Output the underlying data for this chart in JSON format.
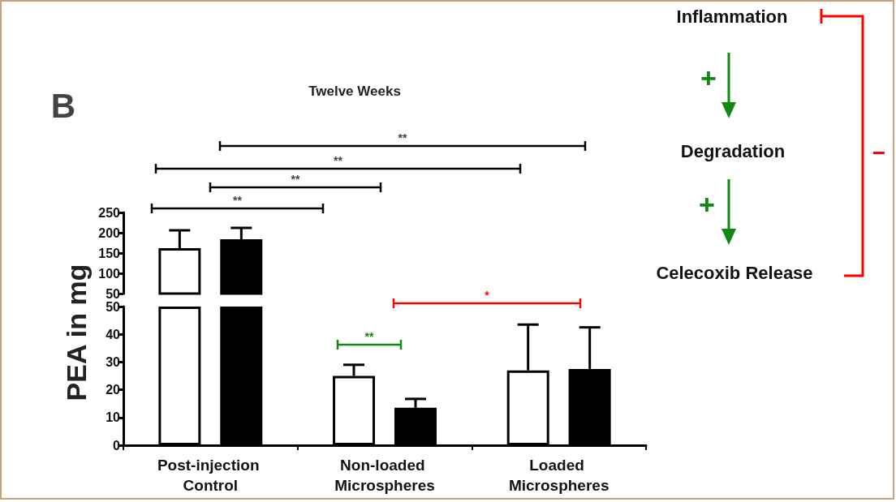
{
  "chart_data": [
    {
      "type": "bar",
      "title": "Twelve Weeks",
      "subtitle": "B",
      "ylabel": "PEA in mg",
      "categories": [
        "Post-injection Control",
        "Non-loaded Microspheres",
        "Loaded Microspheres"
      ],
      "series": [
        {
          "color": "#ffffff",
          "values": [
            162,
            null,
            null
          ],
          "errors": [
            [
              162,
              206
            ],
            null,
            null
          ]
        },
        {
          "color": "#000000",
          "values": [
            184,
            null,
            null
          ],
          "errors": [
            [
              184,
              212
            ],
            null,
            null
          ]
        }
      ],
      "ylim": [
        50,
        250
      ],
      "yticks": [
        50,
        100,
        150,
        200,
        250
      ],
      "tick_labels": "y",
      "annotations": [
        "**",
        "**",
        "**",
        "**",
        "*",
        "**",
        "Inflammation",
        "Degradation",
        "Celecoxib Release",
        "+",
        "+",
        "−"
      ]
    },
    {
      "type": "bar",
      "categories": [
        "Post-injection Control",
        "Non-loaded Microspheres",
        "Loaded Microspheres"
      ],
      "series": [
        {
          "color": "#ffffff",
          "values": [
            50,
            25,
            27
          ],
          "errors": [
            null,
            [
              25,
              29
            ],
            [
              27,
              43.5
            ]
          ]
        },
        {
          "color": "#000000",
          "values": [
            50,
            13.5,
            27.5
          ],
          "errors": [
            null,
            [
              13.5,
              16.7
            ],
            [
              27.5,
              42.5
            ]
          ]
        }
      ],
      "ylim": [
        0,
        50
      ],
      "yticks": [
        0,
        10,
        20,
        30,
        40,
        50
      ]
    }
  ]
}
